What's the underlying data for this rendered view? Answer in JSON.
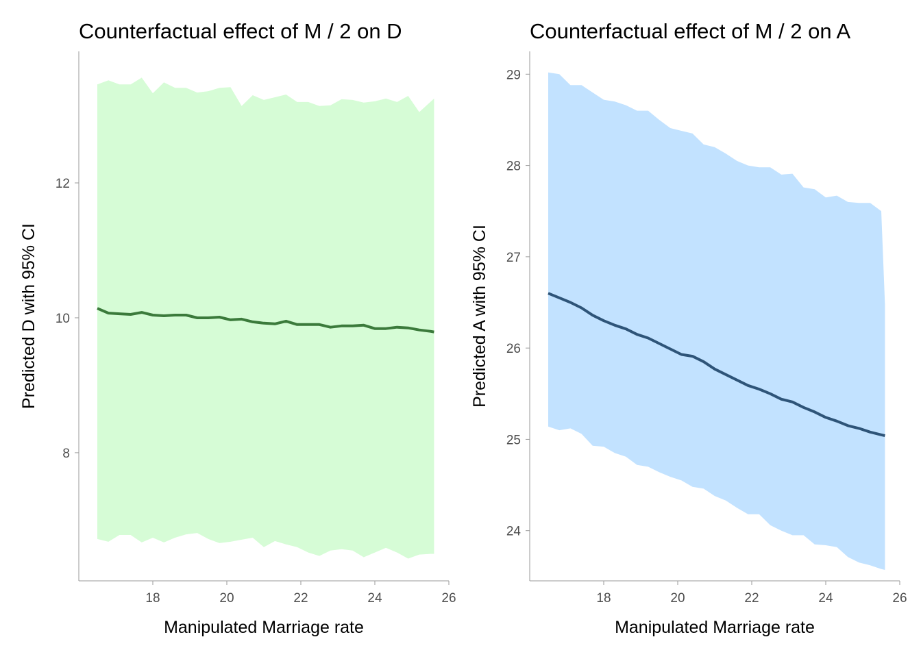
{
  "chart_data": [
    {
      "type": "line",
      "title": "Counterfactual effect of M / 2 on D",
      "xlabel": "Manipulated Marriage rate",
      "ylabel": "Predicted D with 95% CI",
      "xlim": [
        16.0,
        26.0
      ],
      "ylim": [
        6.1,
        13.95
      ],
      "xticks": [
        18,
        20,
        22,
        24,
        26
      ],
      "yticks": [
        8,
        10,
        12
      ],
      "colors": {
        "ribbon": "#d6fcd6",
        "line": "#3b7a3b"
      },
      "x": [
        16.5,
        16.8,
        17.1,
        17.4,
        17.7,
        18.0,
        18.3,
        18.6,
        18.9,
        19.2,
        19.5,
        19.8,
        20.1,
        20.4,
        20.7,
        21.0,
        21.3,
        21.6,
        21.9,
        22.2,
        22.5,
        22.8,
        23.1,
        23.4,
        23.7,
        24.0,
        24.3,
        24.6,
        24.9,
        25.2,
        25.5,
        25.6
      ],
      "series": [
        {
          "values": [
            10.14,
            10.07,
            10.06,
            10.05,
            10.08,
            10.04,
            10.03,
            10.04,
            10.04,
            10.0,
            10.0,
            10.01,
            9.97,
            9.98,
            9.94,
            9.92,
            9.91,
            9.95,
            9.9,
            9.9,
            9.9,
            9.86,
            9.88,
            9.88,
            9.89,
            9.84,
            9.84,
            9.86,
            9.85,
            9.82,
            9.8,
            9.79
          ],
          "lower": [
            6.72,
            6.68,
            6.78,
            6.78,
            6.67,
            6.74,
            6.67,
            6.74,
            6.79,
            6.81,
            6.72,
            6.66,
            6.68,
            6.71,
            6.74,
            6.6,
            6.69,
            6.64,
            6.6,
            6.52,
            6.47,
            6.55,
            6.57,
            6.55,
            6.45,
            6.52,
            6.59,
            6.52,
            6.43,
            6.49,
            6.5,
            6.5
          ],
          "upper": [
            13.46,
            13.52,
            13.46,
            13.46,
            13.56,
            13.33,
            13.49,
            13.41,
            13.41,
            13.34,
            13.36,
            13.41,
            13.42,
            13.14,
            13.3,
            13.23,
            13.27,
            13.31,
            13.2,
            13.2,
            13.14,
            13.15,
            13.24,
            13.23,
            13.19,
            13.21,
            13.25,
            13.2,
            13.29,
            13.05,
            13.2,
            13.25
          ]
        }
      ]
    },
    {
      "type": "line",
      "title": "Counterfactual effect of M / 2 on A",
      "xlabel": "Manipulated Marriage rate",
      "ylabel": "Predicted A with 95% CI",
      "xlim": [
        16.0,
        26.0
      ],
      "ylim": [
        23.45,
        29.25
      ],
      "xticks": [
        18,
        20,
        22,
        24,
        26
      ],
      "yticks": [
        24,
        25,
        26,
        27,
        28,
        29
      ],
      "colors": {
        "ribbon": "#c2e2ff",
        "line": "#2e5478"
      },
      "x": [
        16.5,
        16.8,
        17.1,
        17.4,
        17.7,
        18.0,
        18.3,
        18.6,
        18.9,
        19.2,
        19.5,
        19.8,
        20.1,
        20.4,
        20.7,
        21.0,
        21.3,
        21.6,
        21.9,
        22.2,
        22.5,
        22.8,
        23.1,
        23.4,
        23.7,
        24.0,
        24.3,
        24.6,
        24.9,
        25.2,
        25.5,
        25.6
      ],
      "series": [
        {
          "values": [
            26.6,
            26.55,
            26.5,
            26.44,
            26.36,
            26.3,
            26.25,
            26.21,
            26.15,
            26.11,
            26.05,
            25.99,
            25.93,
            25.91,
            25.85,
            25.77,
            25.71,
            25.65,
            25.59,
            25.55,
            25.5,
            25.44,
            25.41,
            25.35,
            25.3,
            25.24,
            25.2,
            25.15,
            25.12,
            25.08,
            25.05,
            25.04
          ],
          "lower": [
            25.14,
            25.1,
            25.12,
            25.06,
            24.93,
            24.92,
            24.85,
            24.81,
            24.72,
            24.7,
            24.64,
            24.59,
            24.55,
            24.48,
            24.46,
            24.38,
            24.33,
            24.25,
            24.18,
            24.18,
            24.06,
            24.0,
            23.95,
            23.95,
            23.85,
            23.84,
            23.82,
            23.71,
            23.65,
            23.62,
            23.58,
            23.57
          ],
          "upper": [
            29.02,
            29.0,
            28.88,
            28.88,
            28.8,
            28.72,
            28.7,
            28.66,
            28.6,
            28.6,
            28.5,
            28.41,
            28.38,
            28.35,
            28.23,
            28.2,
            28.13,
            28.05,
            28.0,
            27.98,
            27.98,
            27.9,
            27.91,
            27.76,
            27.74,
            27.65,
            27.67,
            27.6,
            27.59,
            27.59,
            27.5,
            26.48
          ]
        }
      ]
    }
  ]
}
